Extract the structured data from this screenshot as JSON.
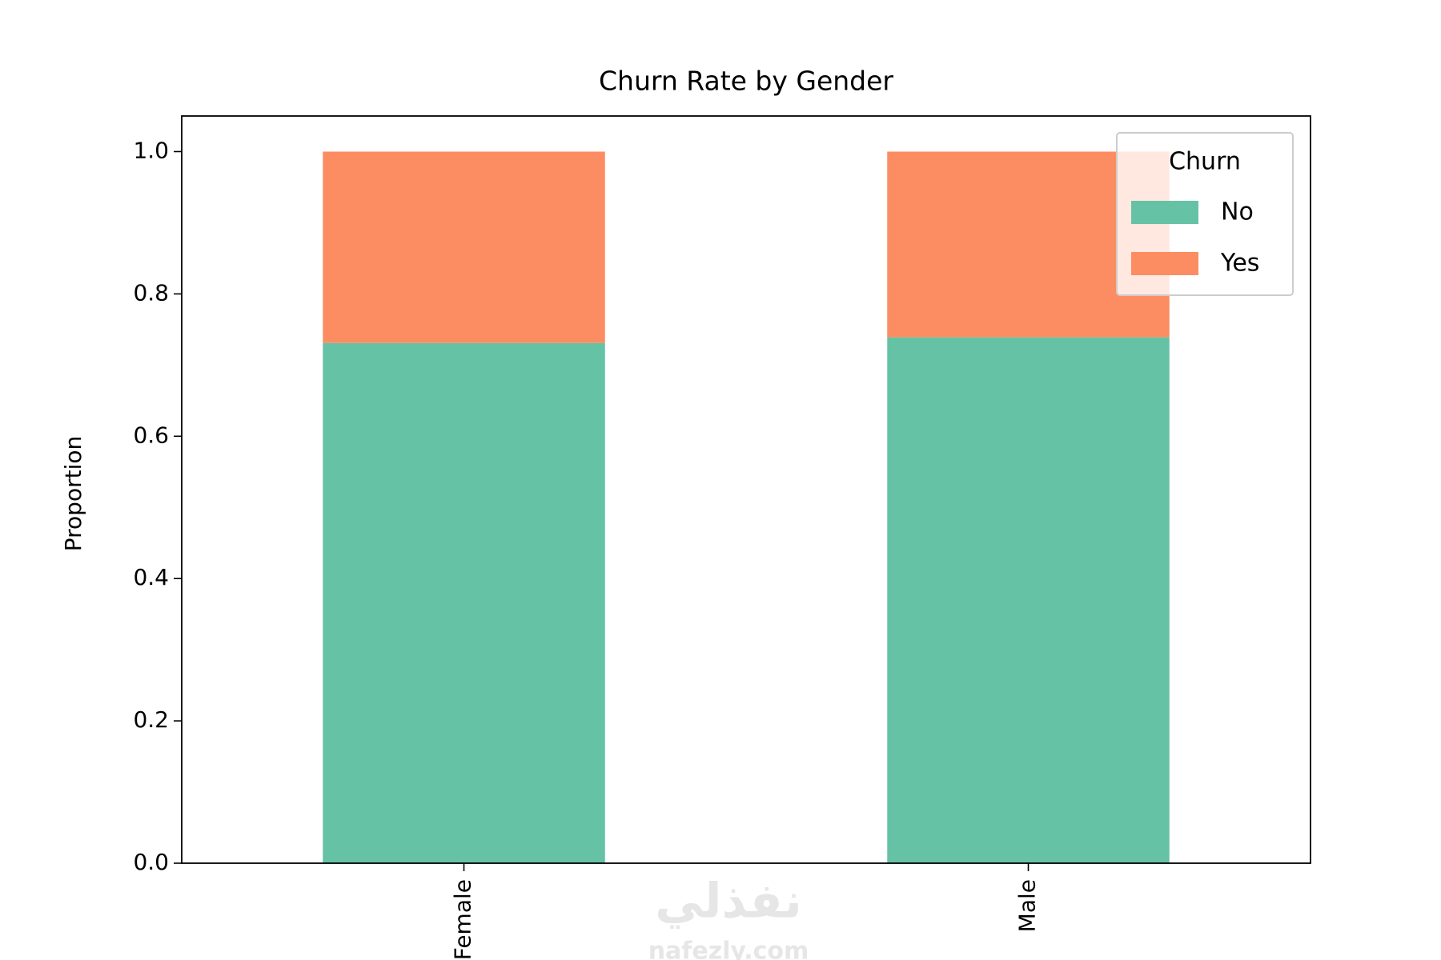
{
  "chart_data": {
    "type": "stacked_bar",
    "title": "Churn Rate by Gender",
    "y_label": "Proportion",
    "categories": [
      "Female",
      "Male"
    ],
    "series": [
      {
        "name": "No",
        "color": "#66c2a5",
        "values": [
          0.731,
          0.739
        ]
      },
      {
        "name": "Yes",
        "color": "#fc8d62",
        "values": [
          0.269,
          0.261
        ]
      }
    ],
    "ylim": [
      0,
      1.05
    ],
    "yticks": [
      {
        "value": 0,
        "label": "0.0"
      },
      {
        "value": 0.2,
        "label": "0.2"
      },
      {
        "value": 0.4,
        "label": "0.4"
      },
      {
        "value": 0.6,
        "label": "0.6"
      },
      {
        "value": 0.8,
        "label": "0.8"
      },
      {
        "value": 1,
        "label": "1.0"
      }
    ],
    "grid": false,
    "legend_title": "Churn",
    "legend_position": "upper right",
    "watermark": [
      "نفذلي",
      "nafezly.com"
    ]
  }
}
